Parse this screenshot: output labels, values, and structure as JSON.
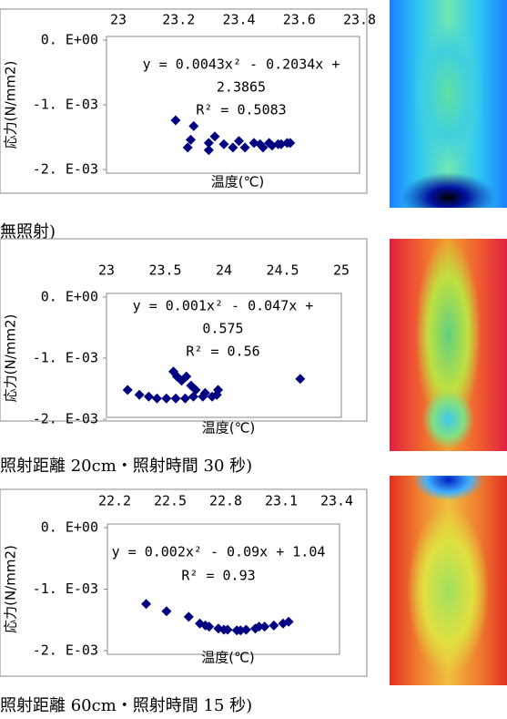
{
  "chart_data": [
    {
      "type": "scatter",
      "x_label": "温度(℃)",
      "y_label": "応力(N/mm2)",
      "caption": "無照射)",
      "annotations": [
        "y = 0.0043x² - 0.2034x +",
        "2.3865",
        "R² = 0.5083"
      ],
      "xlim": [
        23,
        23.8
      ],
      "xticks": [
        23,
        23.2,
        23.4,
        23.6,
        23.8
      ],
      "ylim": [
        -0.002,
        0
      ],
      "yticks": [
        {
          "value": 0,
          "label": "0. E+00"
        },
        {
          "value": -0.001,
          "label": "-1. E-03"
        },
        {
          "value": -0.002,
          "label": "-2. E-03"
        }
      ],
      "color": "#000080",
      "x": [
        23.19,
        23.25,
        23.23,
        23.24,
        23.3,
        23.32,
        23.35,
        23.38,
        23.4,
        23.42,
        23.45,
        23.48,
        23.51,
        23.54,
        23.57,
        23.3,
        23.47,
        23.5,
        23.53,
        23.56
      ],
      "values": [
        -0.00124,
        -0.00133,
        -0.00166,
        -0.00154,
        -0.0017,
        -0.00149,
        -0.00161,
        -0.00166,
        -0.00156,
        -0.00166,
        -0.00159,
        -0.00166,
        -0.00163,
        -0.00161,
        -0.00159,
        -0.00159,
        -0.00161,
        -0.00159,
        -0.00161,
        -0.00159
      ]
    },
    {
      "type": "scatter",
      "x_label": "温度(℃)",
      "y_label": "応力(N/mm2)",
      "caption": "照射距離 20cm・照射時間 30 秒)",
      "annotations": [
        "y = 0.001x² - 0.047x +",
        "0.575",
        "R² = 0.56"
      ],
      "xlim": [
        23,
        25
      ],
      "xticks": [
        23,
        23.5,
        24,
        24.5,
        25
      ],
      "ylim": [
        -0.002,
        0
      ],
      "yticks": [
        {
          "value": 0,
          "label": "0. E+00"
        },
        {
          "value": -0.001,
          "label": "-1. E-03"
        },
        {
          "value": -0.002,
          "label": "-2. E-03"
        }
      ],
      "color": "#000080",
      "x": [
        23.18,
        23.28,
        23.36,
        23.43,
        23.51,
        23.59,
        23.67,
        23.74,
        23.82,
        23.9,
        23.94,
        23.95,
        23.57,
        23.6,
        23.64,
        23.68,
        23.72,
        23.76,
        23.84,
        24.65
      ],
      "values": [
        -0.00152,
        -0.0016,
        -0.00163,
        -0.00166,
        -0.00166,
        -0.00166,
        -0.00166,
        -0.00163,
        -0.00163,
        -0.00163,
        -0.0016,
        -0.00152,
        -0.00122,
        -0.0013,
        -0.00137,
        -0.0013,
        -0.00145,
        -0.00152,
        -0.00157,
        -0.00134
      ]
    },
    {
      "type": "scatter",
      "x_label": "温度(℃)",
      "y_label": "応力(N/mm2)",
      "caption": "照射距離 60cm・照射時間 15 秒)",
      "annotations": [
        "y = 0.002x² - 0.09x + 1.04",
        "R² = 0.93"
      ],
      "xlim": [
        22.2,
        23.4
      ],
      "xticks": [
        22.2,
        22.5,
        22.8,
        23.1,
        23.4
      ],
      "ylim": [
        -0.002,
        0
      ],
      "yticks": [
        {
          "value": 0,
          "label": "0. E+00"
        },
        {
          "value": -0.001,
          "label": "-1. E-03"
        },
        {
          "value": -0.002,
          "label": "-2. E-03"
        }
      ],
      "color": "#000080",
      "x": [
        22.37,
        22.48,
        22.6,
        22.66,
        22.71,
        22.76,
        22.81,
        22.86,
        22.91,
        22.96,
        23.01,
        23.06,
        23.11,
        23.14,
        22.69,
        22.79,
        22.88,
        22.98
      ],
      "values": [
        -0.00124,
        -0.00136,
        -0.00145,
        -0.00156,
        -0.00161,
        -0.00164,
        -0.00166,
        -0.00167,
        -0.00166,
        -0.00164,
        -0.00161,
        -0.00159,
        -0.00156,
        -0.00153,
        -0.00159,
        -0.00166,
        -0.00167,
        -0.00161
      ]
    }
  ]
}
